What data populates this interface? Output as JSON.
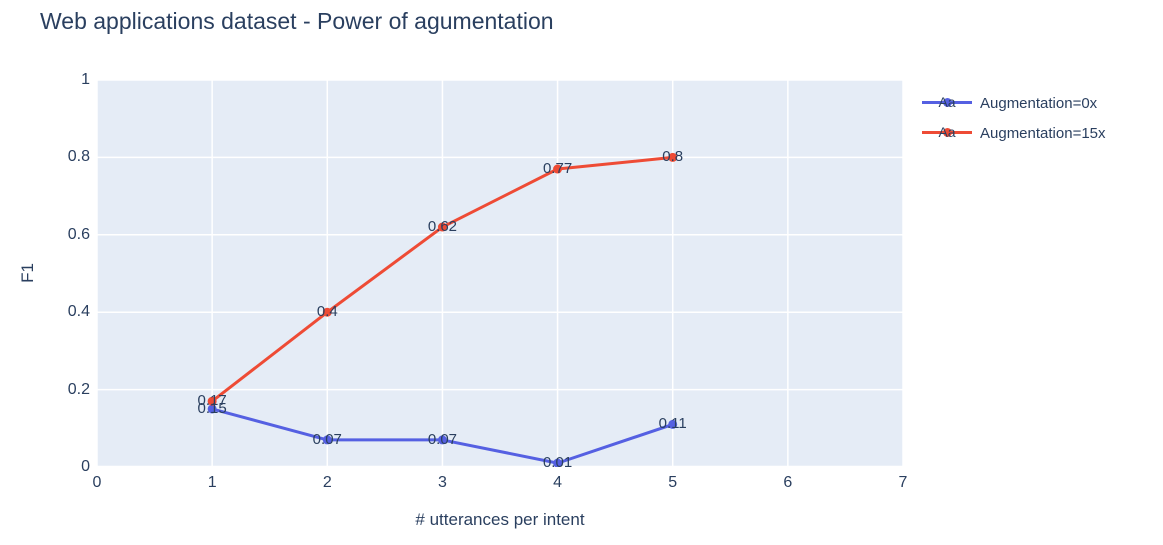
{
  "title": "Web applications dataset - Power of agumentation",
  "colors": {
    "text": "#2a3f5f",
    "plot_background": "#e5ecf6",
    "gridline": "#ffffff",
    "series_blue": "#5560e2",
    "series_red": "#ee4b35"
  },
  "chart_data": {
    "type": "line",
    "title": "Web applications dataset - Power of agumentation",
    "xlabel": "# utterances per intent",
    "ylabel": "F1",
    "xlim": [
      0,
      7
    ],
    "ylim": [
      0,
      1
    ],
    "xticks": [
      "0",
      "1",
      "2",
      "3",
      "4",
      "5",
      "6",
      "7"
    ],
    "yticks": [
      "0",
      "0.2",
      "0.4",
      "0.6",
      "0.8",
      "1"
    ],
    "grid": true,
    "legend_position": "right-top",
    "legend_sample_text": "Aa",
    "x": [
      1,
      2,
      3,
      4,
      5
    ],
    "series": [
      {
        "name": "Augmentation=0x",
        "color": "#5560e2",
        "values": [
          0.15,
          0.07,
          0.07,
          0.01,
          0.11
        ],
        "labels": [
          "0.15",
          "0.07",
          "0.07",
          "0.01",
          "0.11"
        ]
      },
      {
        "name": "Augmentation=15x",
        "color": "#ee4b35",
        "values": [
          0.17,
          0.4,
          0.62,
          0.77,
          0.8
        ],
        "labels": [
          "0.17",
          "0.4",
          "0.62",
          "0.77",
          "0.8"
        ]
      }
    ]
  }
}
